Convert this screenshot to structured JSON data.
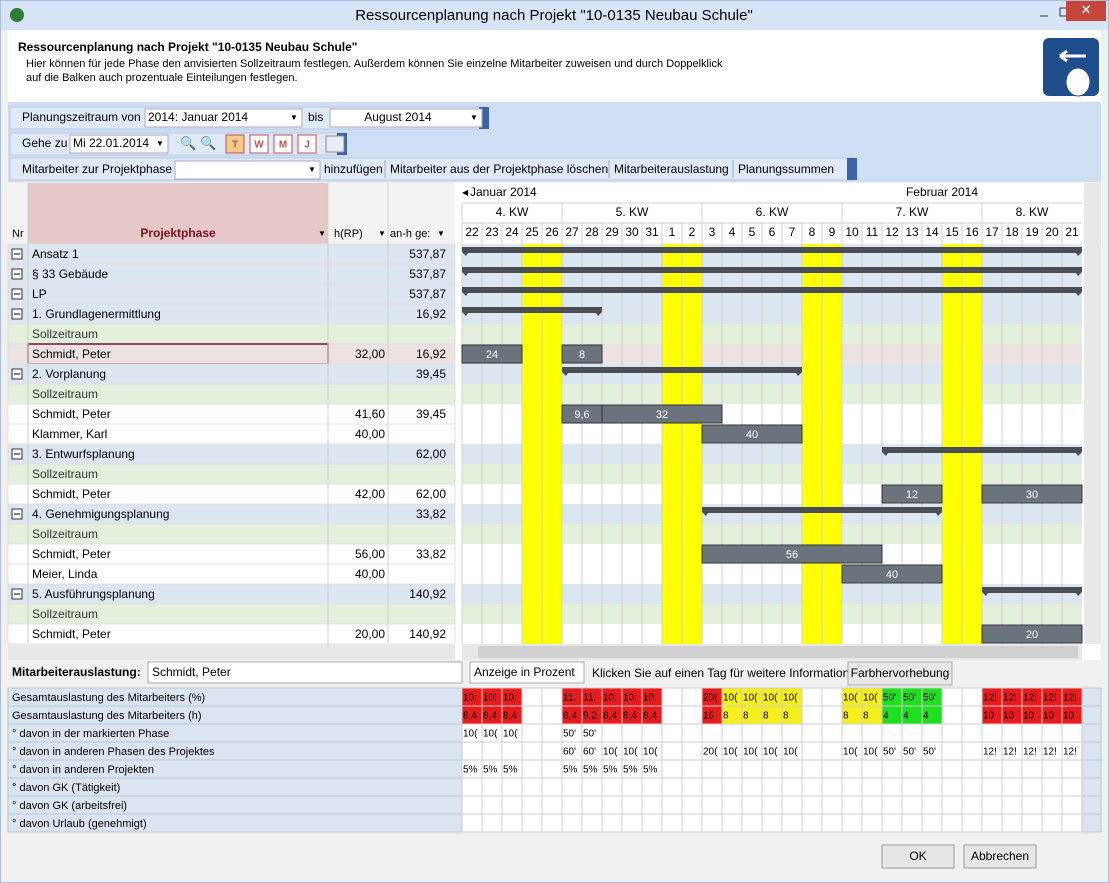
{
  "window": {
    "title": "Ressourcenplanung nach Projekt \"10-0135 Neubau Schule\""
  },
  "header": {
    "title": "Ressourcenplanung nach Projekt \"10-0135 Neubau Schule\"",
    "lines": [
      "Hier können für jede Phase den anvisierten Sollzeitraum festlegen. Außerdem können Sie einzelne Mitarbeiter zuweisen und durch Doppelklick",
      "auf die Balken auch prozentuale Einteilungen festlegen."
    ]
  },
  "toolbar": {
    "period_label": "Planungszeitraum von",
    "from": "2014: Januar 2014",
    "to_label": "bis",
    "to": "August 2014",
    "goto_label": "Gehe zu",
    "goto_date": "Mi 22.01.2014",
    "view_buttons": [
      "T",
      "W",
      "M",
      "J"
    ],
    "employee_label": "Mitarbeiter zur Projektphase",
    "actions": [
      "hinzufügen",
      "Mitarbeiter aus der Projektphase löschen",
      "Mitarbeiterauslastung",
      "Planungssummen"
    ]
  },
  "grid": {
    "columns": [
      "Nr",
      "Projektphase",
      "h(RP)",
      "an-h ge:"
    ],
    "months": [
      "Januar 2014",
      "Februar 2014"
    ],
    "weeks": [
      "4. KW",
      "5. KW",
      "6. KW",
      "7. KW",
      "8. KW"
    ],
    "days": [
      "22",
      "23",
      "24",
      "25",
      "26",
      "27",
      "28",
      "29",
      "30",
      "31",
      "1",
      "2",
      "3",
      "4",
      "5",
      "6",
      "7",
      "8",
      "9",
      "10",
      "11",
      "12",
      "13",
      "14",
      "15",
      "16",
      "17",
      "18",
      "19",
      "20",
      "21"
    ],
    "rows": [
      {
        "label": "Ansatz 1",
        "anh": "537,87"
      },
      {
        "label": "§ 33 Gebäude",
        "anh": "537,87"
      },
      {
        "label": "LP",
        "anh": "537,87"
      },
      {
        "label": "1. Grundlagenermittlung",
        "anh": "16,92"
      },
      {
        "label": "Sollzeitraum"
      },
      {
        "label": "Schmidt, Peter",
        "h": "32,00",
        "anh": "16,92",
        "bars": [
          "24",
          "8"
        ]
      },
      {
        "label": "2. Vorplanung",
        "anh": "39,45"
      },
      {
        "label": "Sollzeitraum"
      },
      {
        "label": "Schmidt, Peter",
        "h": "41,60",
        "anh": "39,45",
        "bars": [
          "9,6",
          "32"
        ]
      },
      {
        "label": "Klammer, Karl",
        "h": "40,00",
        "bars": [
          "40"
        ]
      },
      {
        "label": "3. Entwurfsplanung",
        "anh": "62,00"
      },
      {
        "label": "Sollzeitraum"
      },
      {
        "label": "Schmidt, Peter",
        "h": "42,00",
        "anh": "62,00",
        "bars": [
          "12",
          "30"
        ]
      },
      {
        "label": "4. Genehmigungsplanung",
        "anh": "33,82"
      },
      {
        "label": "Sollzeitraum"
      },
      {
        "label": "Schmidt, Peter",
        "h": "56,00",
        "anh": "33,82",
        "bars": [
          "56"
        ]
      },
      {
        "label": "Meier, Linda",
        "h": "40,00",
        "bars": [
          "40"
        ]
      },
      {
        "label": "5. Ausführungsplanung",
        "anh": "140,92"
      },
      {
        "label": "Sollzeitraum"
      },
      {
        "label": "Schmidt, Peter",
        "h": "20,00",
        "anh": "140,92",
        "bars": [
          "20"
        ]
      }
    ]
  },
  "utilization": {
    "label": "Mitarbeiterauslastung:",
    "employee": "Schmidt, Peter",
    "display": "Anzeige in Prozent",
    "hint": "Klicken Sie auf einen Tag für weitere Informationen",
    "button": "Farbhervorhebung",
    "rows": [
      {
        "label": "Gesamtauslastung des Mitarbeiters (%)",
        "cells": [
          "10:",
          "10!",
          "10:",
          null,
          null,
          "11:",
          "11:",
          "10:",
          "10:",
          "10:",
          null,
          null,
          "20(",
          "10(",
          "10(",
          "10(",
          "10(",
          null,
          null,
          "10(",
          "10(",
          "50'",
          "50'",
          "50'",
          null,
          null,
          "12!",
          "12!",
          "12!",
          "12!",
          "12!"
        ]
      },
      {
        "label": "Gesamtauslastung des Mitarbeiters (h)",
        "cells": [
          "8,4",
          "8,4",
          "8,4",
          null,
          null,
          "8,4",
          "9,2",
          "8,4",
          "8,4",
          "8,4",
          null,
          null,
          "16",
          "8",
          "8",
          "8",
          "8",
          null,
          null,
          "8",
          "8",
          "4",
          "4",
          "4",
          null,
          null,
          "10",
          "10",
          "10",
          "10",
          "10"
        ]
      },
      {
        "label": "° davon in der markierten Phase",
        "cells": [
          "10(",
          "10(",
          "10(",
          null,
          null,
          "50'",
          "50'",
          null,
          null,
          null,
          null,
          null,
          null,
          null,
          null,
          null,
          null,
          null,
          null,
          null,
          null,
          null,
          null,
          null,
          null,
          null,
          null,
          null,
          null,
          null,
          null
        ]
      },
      {
        "label": "° davon in anderen Phasen des Projektes",
        "cells": [
          null,
          null,
          null,
          null,
          null,
          "60'",
          "60'",
          "10(",
          "10(",
          "10(",
          null,
          null,
          "20(",
          "10(",
          "10(",
          "10(",
          "10(",
          null,
          null,
          "10(",
          "10(",
          "50'",
          "50'",
          "50'",
          null,
          null,
          "12!",
          "12!",
          "12!",
          "12!",
          "12!"
        ]
      },
      {
        "label": "° davon in anderen Projekten",
        "cells": [
          "5%",
          "5%",
          "5%",
          null,
          null,
          "5%",
          "5%",
          "5%",
          "5%",
          "5%",
          null,
          null,
          null,
          null,
          null,
          null,
          null,
          null,
          null,
          null,
          null,
          null,
          null,
          null,
          null,
          null,
          null,
          null,
          null,
          null,
          null
        ]
      },
      {
        "label": "° davon GK (Tätigkeit)"
      },
      {
        "label": "° davon GK (arbeitsfrei)"
      },
      {
        "label": "° davon Urlaub (genehmigt)"
      }
    ]
  },
  "buttons": [
    "OK",
    "Abbrechen"
  ]
}
